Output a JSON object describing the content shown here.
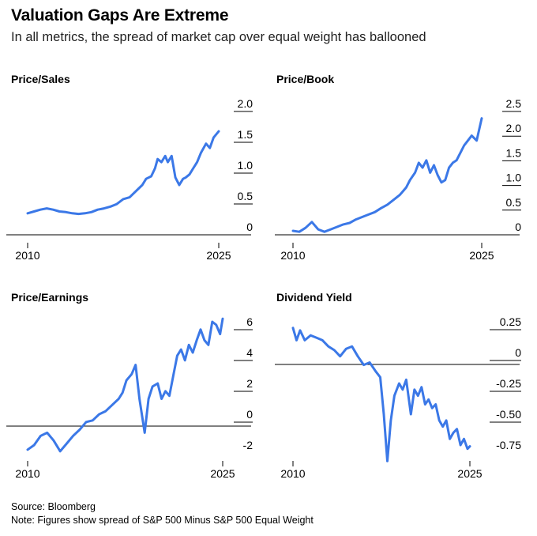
{
  "header": {
    "title": "Valuation Gaps Are Extreme",
    "subtitle": "In all metrics, the spread of market cap over equal weight has ballooned"
  },
  "footer": {
    "source": "Source: Bloomberg",
    "note": "Note: Figures show spread of S&P 500 Minus S&P 500 Equal Weight"
  },
  "colors": {
    "line": "#3b78e7",
    "axis": "#000000"
  },
  "chart_data": [
    {
      "type": "line",
      "title": "Price/Sales",
      "x_tick_labels": [
        "2010",
        "2025"
      ],
      "y_tick_labels": [
        "2.0",
        "1.5",
        "1.0",
        "0.5",
        "0"
      ],
      "xlim": [
        2010,
        2025
      ],
      "ylim": [
        0,
        2.0
      ],
      "series": [
        {
          "name": "Price/Sales",
          "x": [
            2010.0,
            2010.5,
            2011.0,
            2011.5,
            2012.0,
            2012.5,
            2013.0,
            2013.5,
            2014.0,
            2014.5,
            2015.0,
            2015.5,
            2016.0,
            2016.5,
            2017.0,
            2017.5,
            2018.0,
            2018.5,
            2019.0,
            2019.3,
            2019.7,
            2020.0,
            2020.2,
            2020.5,
            2020.8,
            2021.0,
            2021.3,
            2021.6,
            2021.9,
            2022.2,
            2022.4,
            2022.7,
            2023.0,
            2023.3,
            2023.6,
            2024.0,
            2024.3,
            2024.6,
            2025.0
          ],
          "y": [
            0.22,
            0.25,
            0.28,
            0.3,
            0.28,
            0.25,
            0.24,
            0.22,
            0.21,
            0.22,
            0.24,
            0.28,
            0.3,
            0.33,
            0.37,
            0.45,
            0.48,
            0.58,
            0.68,
            0.78,
            0.82,
            0.95,
            1.1,
            1.05,
            1.15,
            1.05,
            1.15,
            0.8,
            0.68,
            0.78,
            0.8,
            0.85,
            0.95,
            1.05,
            1.2,
            1.35,
            1.28,
            1.45,
            1.55
          ]
        }
      ]
    },
    {
      "type": "line",
      "title": "Price/Book",
      "x_tick_labels": [
        "2010",
        "2025"
      ],
      "y_tick_labels": [
        "2.5",
        "2.0",
        "1.5",
        "1.0",
        "0.5",
        "0"
      ],
      "xlim": [
        2010,
        2025
      ],
      "ylim": [
        0,
        2.5
      ],
      "series": [
        {
          "name": "Price/Book",
          "x": [
            2010.0,
            2010.5,
            2011.0,
            2011.5,
            2012.0,
            2012.5,
            2013.0,
            2013.5,
            2014.0,
            2014.5,
            2015.0,
            2015.5,
            2016.0,
            2016.5,
            2017.0,
            2017.5,
            2018.0,
            2018.5,
            2019.0,
            2019.3,
            2019.7,
            2020.0,
            2020.3,
            2020.6,
            2020.9,
            2021.2,
            2021.5,
            2021.8,
            2022.1,
            2022.4,
            2022.7,
            2023.0,
            2023.3,
            2023.6,
            2023.9,
            2024.2,
            2024.6,
            2025.0
          ],
          "y": [
            -0.08,
            -0.1,
            -0.02,
            0.1,
            -0.05,
            -0.1,
            -0.05,
            0.0,
            0.05,
            0.08,
            0.15,
            0.2,
            0.25,
            0.3,
            0.38,
            0.45,
            0.55,
            0.65,
            0.8,
            0.95,
            1.1,
            1.3,
            1.2,
            1.35,
            1.1,
            1.25,
            1.05,
            0.9,
            0.95,
            1.2,
            1.3,
            1.35,
            1.5,
            1.65,
            1.75,
            1.85,
            1.75,
            2.2
          ]
        }
      ]
    },
    {
      "type": "line",
      "title": "Price/Earnings",
      "x_tick_labels": [
        "2010",
        "2025"
      ],
      "y_tick_labels": [
        "6",
        "4",
        "2",
        "0",
        "-2"
      ],
      "xlim": [
        2010,
        2025
      ],
      "ylim": [
        -2,
        6
      ],
      "series": [
        {
          "name": "Price/Earnings",
          "x": [
            2010.0,
            2010.5,
            2011.0,
            2011.5,
            2012.0,
            2012.5,
            2013.0,
            2013.5,
            2014.0,
            2014.5,
            2015.0,
            2015.5,
            2016.0,
            2016.5,
            2017.0,
            2017.3,
            2017.6,
            2018.0,
            2018.3,
            2018.6,
            2019.0,
            2019.3,
            2019.6,
            2020.0,
            2020.3,
            2020.6,
            2020.9,
            2021.2,
            2021.5,
            2021.8,
            2022.1,
            2022.4,
            2022.7,
            2023.0,
            2023.3,
            2023.6,
            2023.9,
            2024.2,
            2024.5,
            2024.8,
            2025.0
          ],
          "y": [
            -2.3,
            -2.0,
            -1.4,
            -1.2,
            -1.7,
            -2.4,
            -1.9,
            -1.4,
            -1.0,
            -0.5,
            -0.4,
            0.0,
            0.2,
            0.6,
            1.0,
            1.4,
            2.2,
            2.6,
            3.2,
            1.0,
            -1.2,
            1.0,
            1.8,
            2.0,
            1.0,
            1.5,
            1.2,
            2.5,
            3.8,
            4.2,
            3.5,
            4.5,
            4.0,
            4.8,
            5.5,
            4.8,
            4.5,
            6.0,
            5.8,
            5.2,
            6.2
          ]
        }
      ]
    },
    {
      "type": "line",
      "title": "Dividend Yield",
      "x_tick_labels": [
        "2010",
        "2025"
      ],
      "y_tick_labels": [
        "0.25",
        "0",
        "-0.25",
        "-0.50",
        "-0.75"
      ],
      "xlim": [
        2010,
        2025
      ],
      "ylim": [
        -0.75,
        0.25
      ],
      "series": [
        {
          "name": "Dividend Yield",
          "x": [
            2010.0,
            2010.3,
            2010.6,
            2011.0,
            2011.5,
            2012.0,
            2012.5,
            2013.0,
            2013.5,
            2014.0,
            2014.5,
            2015.0,
            2015.5,
            2016.0,
            2016.5,
            2017.0,
            2017.4,
            2017.7,
            2018.0,
            2018.3,
            2018.6,
            2019.0,
            2019.3,
            2019.6,
            2020.0,
            2020.3,
            2020.6,
            2020.9,
            2021.2,
            2021.5,
            2021.8,
            2022.1,
            2022.4,
            2022.7,
            2023.0,
            2023.3,
            2023.6,
            2023.9,
            2024.2,
            2024.5,
            2024.8,
            2025.0
          ],
          "y": [
            0.2,
            0.1,
            0.18,
            0.1,
            0.14,
            0.12,
            0.1,
            0.05,
            0.02,
            -0.03,
            0.03,
            0.05,
            -0.03,
            -0.1,
            -0.08,
            -0.15,
            -0.2,
            -0.5,
            -0.88,
            -0.55,
            -0.35,
            -0.25,
            -0.3,
            -0.22,
            -0.5,
            -0.3,
            -0.35,
            -0.28,
            -0.42,
            -0.38,
            -0.45,
            -0.42,
            -0.55,
            -0.6,
            -0.55,
            -0.7,
            -0.65,
            -0.62,
            -0.75,
            -0.7,
            -0.78,
            -0.76
          ]
        }
      ]
    }
  ]
}
